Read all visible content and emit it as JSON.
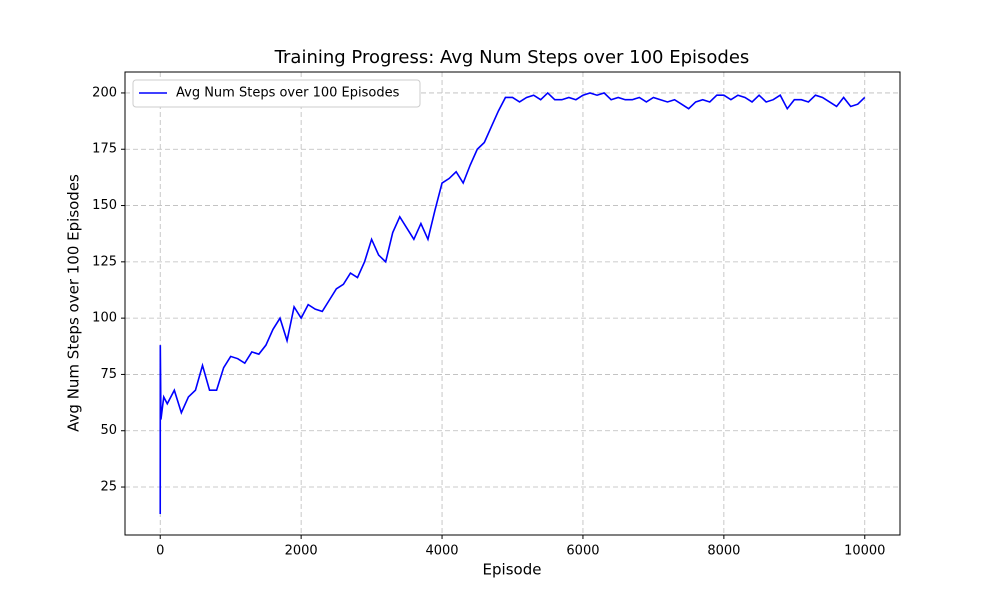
{
  "chart_data": {
    "type": "line",
    "title": "Training Progress: Avg Num Steps over 100 Episodes",
    "x_label": "Episode",
    "y_label": "Avg Num Steps over 100 Episodes",
    "x": [
      0,
      1,
      10,
      50,
      100,
      200,
      300,
      400,
      500,
      600,
      700,
      800,
      900,
      1000,
      1100,
      1200,
      1300,
      1400,
      1500,
      1600,
      1700,
      1800,
      1900,
      2000,
      2100,
      2200,
      2300,
      2400,
      2500,
      2600,
      2700,
      2800,
      2900,
      3000,
      3100,
      3200,
      3300,
      3400,
      3500,
      3600,
      3700,
      3800,
      3900,
      4000,
      4100,
      4200,
      4300,
      4400,
      4500,
      4600,
      4700,
      4800,
      4900,
      5000,
      5100,
      5200,
      5300,
      5400,
      5500,
      5600,
      5700,
      5800,
      5900,
      6000,
      6100,
      6200,
      6300,
      6400,
      6500,
      6600,
      6700,
      6800,
      6900,
      7000,
      7100,
      7200,
      7300,
      7400,
      7500,
      7600,
      7700,
      7800,
      7900,
      8000,
      8100,
      8200,
      8300,
      8400,
      8500,
      8600,
      8700,
      8800,
      8900,
      9000,
      9100,
      9200,
      9300,
      9400,
      9500,
      9600,
      9700,
      9800,
      9900,
      9999
    ],
    "series": [
      {
        "name": "Avg Num Steps over 100 Episodes",
        "color": "#0000ff",
        "values": [
          13,
          88,
          55,
          65,
          62,
          68,
          58,
          65,
          68,
          79,
          68,
          68,
          78,
          83,
          82,
          80,
          85,
          84,
          88,
          95,
          100,
          90,
          105,
          100,
          106,
          104,
          103,
          108,
          113,
          115,
          120,
          118,
          125,
          135,
          128,
          125,
          138,
          145,
          140,
          135,
          142,
          135,
          148,
          160,
          162,
          165,
          160,
          168,
          175,
          178,
          185,
          192,
          198,
          198,
          196,
          198,
          199,
          197,
          200,
          197,
          197,
          198,
          197,
          199,
          200,
          199,
          200,
          197,
          198,
          197,
          197,
          198,
          196,
          198,
          197,
          196,
          197,
          195,
          193,
          196,
          197,
          196,
          199,
          199,
          197,
          199,
          198,
          196,
          199,
          196,
          197,
          199,
          193,
          197,
          197,
          196,
          199,
          198,
          196,
          194,
          198,
          194,
          195,
          198
        ]
      }
    ],
    "xlim": [
      -500,
      10500
    ],
    "ylim": [
      3.7,
      209.3
    ],
    "xticks": [
      0,
      2000,
      4000,
      6000,
      8000,
      10000
    ],
    "yticks": [
      25,
      50,
      75,
      100,
      125,
      150,
      175,
      200
    ],
    "grid": true,
    "legend": "upper left"
  }
}
